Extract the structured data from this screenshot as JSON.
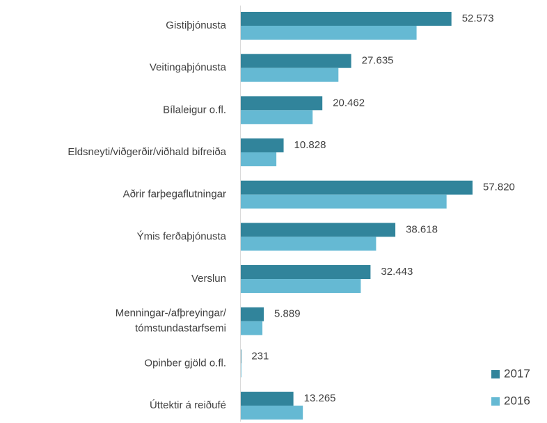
{
  "chart_data": {
    "type": "hbar",
    "categories": [
      "Gistiþjónusta",
      "Veitingaþjónusta",
      "Bílaleigur o.fl.",
      "Eldsneyti/viðgerðir/viðhald bifreiða",
      "Aðrir farþegaflutningar",
      "Ýmis ferðaþjónusta",
      "Verslun",
      "Menningar-/afþreyingar/\ntómstundastarfsemi",
      "Opinber gjöld o.fl.",
      "Úttektir á reiðufé"
    ],
    "series": [
      {
        "name": "2017",
        "color": "#31849b",
        "values": [
          52573,
          27635,
          20462,
          10828,
          57820,
          38618,
          32443,
          5889,
          231,
          13265
        ],
        "value_labels": [
          "52.573",
          "27.635",
          "20.462",
          "10.828",
          "57.820",
          "38.618",
          "32.443",
          "5.889",
          "231",
          "13.265"
        ]
      },
      {
        "name": "2016",
        "color": "#65b9d3",
        "values": [
          43900,
          24460,
          18040,
          9020,
          51360,
          33830,
          30020,
          5550,
          200,
          15610
        ]
      }
    ],
    "legend": "lower-right"
  }
}
